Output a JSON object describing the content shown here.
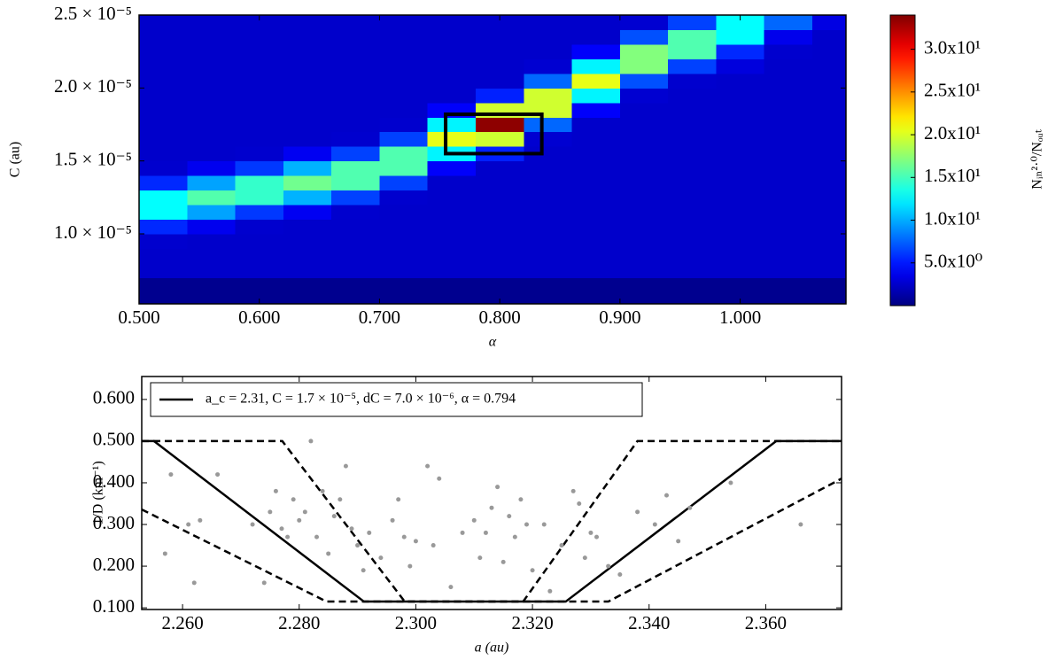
{
  "chart_data": [
    {
      "type": "heatmap",
      "xlabel": "α",
      "ylabel": "C (au)",
      "zlabel": "Nᵢₙ²·⁰/Nₒᵤₜ",
      "xlim": [
        0.5,
        1.088
      ],
      "ylim": [
        5.2e-06,
        2.5e-05
      ],
      "zlim": [
        0,
        34
      ],
      "xticks": [
        {
          "value": 0.5,
          "label": "0.500"
        },
        {
          "value": 0.6,
          "label": "0.600"
        },
        {
          "value": 0.7,
          "label": "0.700"
        },
        {
          "value": 0.8,
          "label": "0.800"
        },
        {
          "value": 0.9,
          "label": "0.900"
        },
        {
          "value": 1.0,
          "label": "1.000"
        }
      ],
      "yticks": [
        {
          "value": 1e-05,
          "label": "1.0 × 10⁻⁵"
        },
        {
          "value": 1.5e-05,
          "label": "1.5 × 10⁻⁵"
        },
        {
          "value": 2e-05,
          "label": "2.0 × 10⁻⁵"
        },
        {
          "value": 2.5e-05,
          "label": "2.5 × 10⁻⁵"
        }
      ],
      "zticks": [
        {
          "value": 5,
          "label": "5.0x10⁰"
        },
        {
          "value": 10,
          "label": "1.0x10¹"
        },
        {
          "value": 15,
          "label": "1.5x10¹"
        },
        {
          "value": 20,
          "label": "2.0x10¹"
        },
        {
          "value": 25,
          "label": "2.5x10¹"
        },
        {
          "value": 30,
          "label": "3.0x10¹"
        }
      ],
      "colormap": "jet",
      "xbins": [
        0.5,
        0.54,
        0.58,
        0.62,
        0.66,
        0.7,
        0.74,
        0.78,
        0.82,
        0.86,
        0.9,
        0.94,
        0.98,
        1.02,
        1.06,
        1.088
      ],
      "ybins": [
        5.2e-06,
        6e-06,
        7e-06,
        8e-06,
        9e-06,
        1e-05,
        1.1e-05,
        1.2e-05,
        1.3e-05,
        1.4e-05,
        1.5e-05,
        1.6e-05,
        1.7e-05,
        1.8e-05,
        1.9e-05,
        2e-05,
        2.1e-05,
        2.2e-05,
        2.3e-05,
        2.4e-05,
        2.5e-05
      ],
      "z": [
        [
          0.5,
          0.5,
          0.5,
          0.5,
          0.5,
          0.5,
          0.5,
          0.5,
          0.5,
          0.5,
          0.5,
          0.5,
          0.5,
          0.5,
          0.5
        ],
        [
          0.5,
          0.5,
          0.5,
          0.5,
          0.5,
          0.5,
          0.5,
          0.5,
          0.5,
          0.5,
          0.5,
          0.5,
          0.5,
          0.5,
          0.5
        ],
        [
          2.5,
          2.5,
          2.5,
          2.5,
          2.5,
          2.5,
          2.5,
          2.5,
          2.5,
          2.5,
          2.5,
          2.5,
          2.5,
          2.5,
          2.5
        ],
        [
          2.5,
          2.5,
          2.5,
          2.5,
          2.5,
          2.5,
          2.5,
          2.5,
          2.5,
          2.5,
          2.5,
          2.5,
          2.5,
          2.5,
          2.5
        ],
        [
          2.6,
          2.5,
          2.5,
          2.5,
          2.5,
          2.5,
          2.5,
          2.5,
          2.5,
          2.5,
          2.5,
          2.5,
          2.5,
          2.5,
          2.5
        ],
        [
          5.6,
          3.7,
          2.6,
          2.5,
          2.5,
          2.5,
          2.5,
          2.5,
          2.5,
          2.5,
          2.5,
          2.5,
          2.5,
          2.5,
          2.5
        ],
        [
          12.8,
          9.7,
          6.1,
          3.8,
          2.6,
          2.5,
          2.5,
          2.5,
          2.5,
          2.5,
          2.5,
          2.5,
          2.5,
          2.5,
          2.5
        ],
        [
          12.8,
          15.5,
          14.5,
          10.2,
          6.4,
          2.6,
          2.5,
          2.5,
          2.5,
          2.5,
          2.5,
          2.5,
          2.5,
          2.5,
          2.5
        ],
        [
          5.6,
          9.7,
          14.5,
          16.5,
          15.4,
          6.4,
          2.5,
          2.5,
          2.5,
          2.5,
          2.5,
          2.5,
          2.5,
          2.5,
          2.5
        ],
        [
          2.6,
          3.7,
          6.1,
          10.2,
          15.4,
          15.4,
          4.1,
          2.5,
          2.5,
          2.5,
          2.5,
          2.5,
          2.5,
          2.5,
          2.5
        ],
        [
          2.5,
          2.5,
          2.6,
          3.8,
          6.4,
          15.4,
          12.4,
          5.3,
          2.5,
          2.5,
          2.5,
          2.5,
          2.5,
          2.5,
          2.5
        ],
        [
          2.5,
          2.5,
          2.5,
          2.5,
          2.6,
          6.4,
          20.5,
          19.6,
          2.7,
          2.5,
          2.5,
          2.5,
          2.5,
          2.5,
          2.5
        ],
        [
          2.5,
          2.5,
          2.5,
          2.5,
          2.5,
          2.6,
          12.4,
          33.5,
          7.7,
          2.5,
          2.5,
          2.5,
          2.5,
          2.5,
          2.5
        ],
        [
          2.5,
          2.5,
          2.5,
          2.5,
          2.5,
          2.5,
          4.1,
          19.6,
          19.7,
          4.1,
          2.5,
          2.5,
          2.5,
          2.5,
          2.5
        ],
        [
          2.5,
          2.5,
          2.5,
          2.5,
          2.5,
          2.5,
          2.5,
          5.3,
          19.7,
          12.4,
          2.7,
          2.5,
          2.5,
          2.5,
          2.5
        ],
        [
          2.5,
          2.5,
          2.5,
          2.5,
          2.5,
          2.5,
          2.5,
          2.5,
          7.7,
          20.5,
          6.9,
          2.6,
          2.5,
          2.5,
          2.5
        ],
        [
          2.5,
          2.5,
          2.5,
          2.5,
          2.5,
          2.5,
          2.5,
          2.5,
          2.7,
          12.4,
          17.1,
          6.4,
          3.1,
          2.5,
          2.5
        ],
        [
          2.5,
          2.5,
          2.5,
          2.5,
          2.5,
          2.5,
          2.5,
          2.5,
          2.5,
          4.1,
          17.1,
          15.4,
          5.6,
          2.6,
          2.5
        ],
        [
          2.5,
          2.5,
          2.5,
          2.5,
          2.5,
          2.5,
          2.5,
          2.5,
          2.5,
          2.5,
          6.9,
          15.4,
          12.8,
          3.6,
          2.5
        ],
        [
          2.5,
          2.5,
          2.5,
          2.5,
          2.5,
          2.5,
          2.5,
          2.5,
          2.5,
          2.5,
          2.7,
          6.4,
          12.8,
          7.7,
          3.3
        ]
      ],
      "box_x": [
        0.755,
        0.835
      ],
      "box_y": [
        1.55e-05,
        1.82e-05
      ]
    },
    {
      "type": "line",
      "xlabel": "a (au)",
      "ylabel": "1/D (km⁻¹)",
      "xlim": [
        2.253,
        2.373
      ],
      "ylim": [
        0.096,
        0.655
      ],
      "xticks": [
        {
          "value": 2.26,
          "label": "2.260"
        },
        {
          "value": 2.28,
          "label": "2.280"
        },
        {
          "value": 2.3,
          "label": "2.300"
        },
        {
          "value": 2.32,
          "label": "2.320"
        },
        {
          "value": 2.34,
          "label": "2.340"
        },
        {
          "value": 2.36,
          "label": "2.360"
        }
      ],
      "yticks": [
        {
          "value": 0.1,
          "label": "0.100"
        },
        {
          "value": 0.2,
          "label": "0.200"
        },
        {
          "value": 0.3,
          "label": "0.300"
        },
        {
          "value": 0.4,
          "label": "0.400"
        },
        {
          "value": 0.5,
          "label": "0.500"
        },
        {
          "value": 0.6,
          "label": "0.600"
        }
      ],
      "legend": "upper left",
      "series": [
        {
          "name": "a_c = 2.31, C = 1.7 × 10⁻⁵, dC = 7.0 × 10⁻⁶, α = 0.794",
          "color": "#000000",
          "style": "solid",
          "x": [
            2.253,
            2.2551,
            2.2911,
            2.3257,
            2.3618,
            2.373
          ],
          "values": [
            0.5,
            0.5,
            0.115,
            0.115,
            0.5,
            0.5
          ]
        },
        {
          "color": "#000000",
          "style": "dashed",
          "x": [
            2.253,
            2.2771,
            2.2981,
            2.3184,
            2.338,
            2.373
          ],
          "values": [
            0.5,
            0.5,
            0.115,
            0.115,
            0.5,
            0.5
          ]
        },
        {
          "color": "#000000",
          "style": "dashed",
          "x": [
            2.253,
            2.2847,
            2.333,
            2.373
          ],
          "values": [
            0.336,
            0.115,
            0.115,
            0.41
          ]
        },
        {
          "type": "scatter",
          "color": "#999999",
          "x": [
            2.257,
            2.258,
            2.261,
            2.262,
            2.263,
            2.266,
            2.272,
            2.274,
            2.275,
            2.276,
            2.277,
            2.278,
            2.279,
            2.28,
            2.281,
            2.282,
            2.283,
            2.284,
            2.285,
            2.286,
            2.287,
            2.288,
            2.289,
            2.29,
            2.291,
            2.292,
            2.294,
            2.296,
            2.297,
            2.298,
            2.299,
            2.3,
            2.302,
            2.303,
            2.304,
            2.306,
            2.308,
            2.31,
            2.311,
            2.312,
            2.313,
            2.314,
            2.315,
            2.316,
            2.317,
            2.318,
            2.319,
            2.32,
            2.322,
            2.323,
            2.325,
            2.327,
            2.328,
            2.329,
            2.33,
            2.331,
            2.333,
            2.335,
            2.338,
            2.341,
            2.343,
            2.345,
            2.347,
            2.354,
            2.366
          ],
          "values": [
            0.23,
            0.42,
            0.3,
            0.16,
            0.31,
            0.42,
            0.3,
            0.16,
            0.33,
            0.38,
            0.29,
            0.27,
            0.36,
            0.31,
            0.33,
            0.5,
            0.27,
            0.38,
            0.23,
            0.32,
            0.36,
            0.44,
            0.29,
            0.25,
            0.19,
            0.28,
            0.22,
            0.31,
            0.36,
            0.27,
            0.2,
            0.26,
            0.44,
            0.25,
            0.41,
            0.15,
            0.28,
            0.31,
            0.22,
            0.28,
            0.34,
            0.39,
            0.21,
            0.32,
            0.27,
            0.36,
            0.3,
            0.19,
            0.3,
            0.14,
            0.25,
            0.38,
            0.35,
            0.22,
            0.28,
            0.27,
            0.2,
            0.18,
            0.33,
            0.3,
            0.37,
            0.26,
            0.34,
            0.4,
            0.3
          ]
        }
      ]
    }
  ]
}
